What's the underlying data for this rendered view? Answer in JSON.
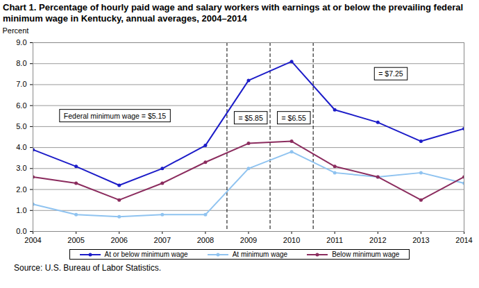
{
  "chart_data": {
    "type": "line",
    "title": "Chart 1. Percentage of hourly paid wage and salary workers with earnings at or below the prevailing federal minimum wage in Kentucky, annual averages, 2004–2014",
    "y_label": "Percent",
    "source": "Source: U.S. Bureau of Labor Statistics.",
    "x": [
      2004,
      2005,
      2006,
      2007,
      2008,
      2009,
      2010,
      2011,
      2012,
      2013,
      2014
    ],
    "xlim": [
      2004,
      2014
    ],
    "xticks": [
      2004,
      2005,
      2006,
      2007,
      2008,
      2009,
      2010,
      2011,
      2012,
      2013,
      2014
    ],
    "ylim": [
      0,
      9
    ],
    "yticks": [
      {
        "value": 0,
        "label": "0.0"
      },
      {
        "value": 1,
        "label": "1.0"
      },
      {
        "value": 2,
        "label": "2.0"
      },
      {
        "value": 3,
        "label": "3.0"
      },
      {
        "value": 4,
        "label": "4.0"
      },
      {
        "value": 5,
        "label": "5.0"
      },
      {
        "value": 6,
        "label": "6.0"
      },
      {
        "value": 7,
        "label": "7.0"
      },
      {
        "value": 8,
        "label": "8.0"
      },
      {
        "value": 9,
        "label": "9.0"
      }
    ],
    "grid": true,
    "legend": "bottom",
    "annotations": [
      "Federal minimum wage = $5.15",
      "= $5.85",
      "= $6.55",
      "= $7.25"
    ],
    "series": [
      {
        "name": "At or below minimum wage",
        "color": "#1c1cc8",
        "marker": "circle",
        "line_style": "solid",
        "values": [
          3.9,
          3.1,
          2.2,
          3.0,
          4.1,
          7.2,
          8.1,
          5.8,
          5.2,
          4.3,
          4.9
        ]
      },
      {
        "name": "At minimum wage",
        "color": "#8fc3f0",
        "marker": "circle",
        "line_style": "solid",
        "values": [
          1.3,
          0.8,
          0.7,
          0.8,
          0.8,
          3.0,
          3.8,
          2.8,
          2.6,
          2.8,
          2.3
        ]
      },
      {
        "name": "Below minimum wage",
        "color": "#8b2c5e",
        "marker": "circle",
        "line_style": "solid",
        "values": [
          2.6,
          2.3,
          1.5,
          2.3,
          3.3,
          4.2,
          4.3,
          3.1,
          2.6,
          1.5,
          2.6
        ]
      }
    ]
  }
}
